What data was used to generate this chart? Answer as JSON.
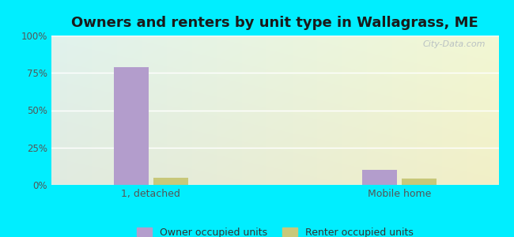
{
  "title": "Owners and renters by unit type in Wallagrass, ME",
  "categories": [
    "1, detached",
    "Mobile home"
  ],
  "owner_values": [
    79,
    10
  ],
  "renter_values": [
    5,
    4
  ],
  "owner_color": "#b39dcc",
  "renter_color": "#c8c87a",
  "ylim": [
    0,
    100
  ],
  "yticks": [
    0,
    25,
    50,
    75,
    100
  ],
  "ytick_labels": [
    "0%",
    "25%",
    "50%",
    "75%",
    "100%"
  ],
  "legend_owner": "Owner occupied units",
  "legend_renter": "Renter occupied units",
  "outer_bg": "#00eeff",
  "watermark": "City-Data.com",
  "title_fontsize": 13,
  "bar_width": 0.28
}
